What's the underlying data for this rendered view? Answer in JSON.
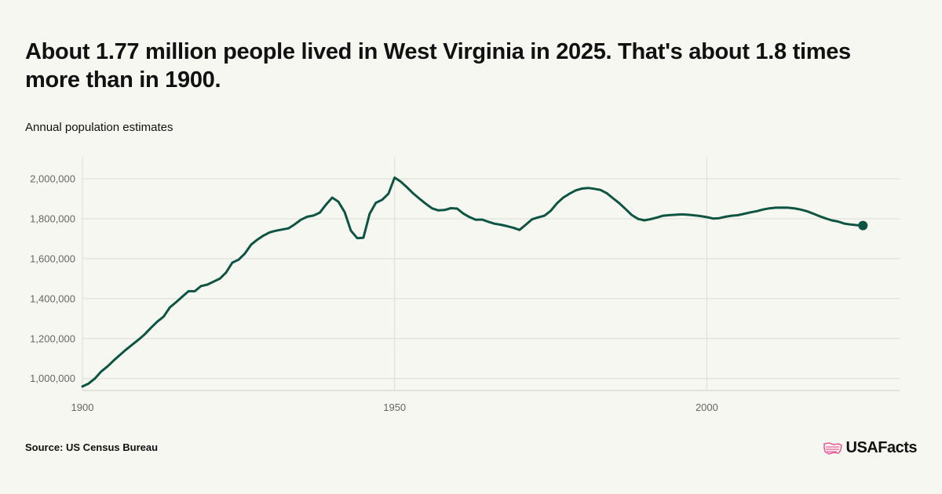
{
  "title": "About 1.77 million people lived in West Virginia in 2025. That's about 1.8 times more than in 1900.",
  "subtitle": "Annual population estimates",
  "source": "Source: US Census Bureau",
  "brand": {
    "name": "USAFacts",
    "logo_icon": "us-map-flag-icon",
    "logo_color": "#e85d9a"
  },
  "colors": {
    "line": "#0d5443",
    "grid": "#dcdcd6",
    "axis_text": "#666666"
  },
  "chart_data": {
    "type": "line",
    "title": "",
    "xlabel": "",
    "ylabel": "",
    "xlim": [
      1900,
      2031
    ],
    "ylim": [
      940000,
      2110000
    ],
    "x_ticks": [
      1900,
      1950,
      2000
    ],
    "y_ticks": [
      1000000,
      1200000,
      1400000,
      1600000,
      1800000,
      2000000
    ],
    "x_tick_labels": [
      "1900",
      "1950",
      "2000"
    ],
    "y_tick_labels": [
      "1,000,000",
      "1,200,000",
      "1,400,000",
      "1,600,000",
      "1,800,000",
      "2,000,000"
    ],
    "grid": true,
    "end_marker": true,
    "series": [
      {
        "x": [
          1900,
          1901,
          1902,
          1903,
          1904,
          1905,
          1906,
          1907,
          1908,
          1909,
          1910,
          1911,
          1912,
          1913,
          1914,
          1915,
          1916,
          1917,
          1918,
          1919,
          1920,
          1921,
          1922,
          1923,
          1924,
          1925,
          1926,
          1927,
          1928,
          1929,
          1930,
          1931,
          1932,
          1933,
          1934,
          1935,
          1936,
          1937,
          1938,
          1939,
          1940,
          1941,
          1942,
          1943,
          1944,
          1945,
          1946,
          1947,
          1948,
          1949,
          1950,
          1951,
          1952,
          1953,
          1954,
          1955,
          1956,
          1957,
          1958,
          1959,
          1960,
          1961,
          1962,
          1963,
          1964,
          1965,
          1966,
          1967,
          1968,
          1969,
          1970,
          1971,
          1972,
          1973,
          1974,
          1975,
          1976,
          1977,
          1978,
          1979,
          1980,
          1981,
          1982,
          1983,
          1984,
          1985,
          1986,
          1987,
          1988,
          1989,
          1990,
          1991,
          1992,
          1993,
          1994,
          1995,
          1996,
          1997,
          1998,
          1999,
          2000,
          2001,
          2002,
          2003,
          2004,
          2005,
          2006,
          2007,
          2008,
          2009,
          2010,
          2011,
          2012,
          2013,
          2014,
          2015,
          2016,
          2017,
          2018,
          2019,
          2020,
          2021,
          2022,
          2023,
          2024,
          2025
        ],
        "values": [
          960000,
          975000,
          1000000,
          1035000,
          1060000,
          1090000,
          1118000,
          1145000,
          1170000,
          1195000,
          1222000,
          1255000,
          1285000,
          1310000,
          1356000,
          1382000,
          1410000,
          1437000,
          1437000,
          1463000,
          1470000,
          1485000,
          1500000,
          1530000,
          1580000,
          1595000,
          1625000,
          1670000,
          1695000,
          1716000,
          1732000,
          1740000,
          1746000,
          1752000,
          1772000,
          1795000,
          1810000,
          1816000,
          1830000,
          1870000,
          1906000,
          1885000,
          1833000,
          1740000,
          1703000,
          1705000,
          1825000,
          1880000,
          1895000,
          1925000,
          2006000,
          1985000,
          1957000,
          1926000,
          1900000,
          1875000,
          1852000,
          1842000,
          1844000,
          1853000,
          1851000,
          1826000,
          1808000,
          1795000,
          1796000,
          1785000,
          1775000,
          1770000,
          1763000,
          1755000,
          1744000,
          1770000,
          1797000,
          1807000,
          1815000,
          1840000,
          1877000,
          1906000,
          1925000,
          1942000,
          1951000,
          1954000,
          1950000,
          1944000,
          1927000,
          1902000,
          1877000,
          1848000,
          1818000,
          1799000,
          1792000,
          1798000,
          1806000,
          1815000,
          1818000,
          1820000,
          1822000,
          1820000,
          1817000,
          1813000,
          1808000,
          1801000,
          1803000,
          1810000,
          1815000,
          1818000,
          1825000,
          1832000,
          1838000,
          1846000,
          1852000,
          1855000,
          1856000,
          1855000,
          1852000,
          1846000,
          1838000,
          1826000,
          1813000,
          1802000,
          1792000,
          1786000,
          1776000,
          1771000,
          1768000,
          1766000
        ]
      }
    ]
  }
}
